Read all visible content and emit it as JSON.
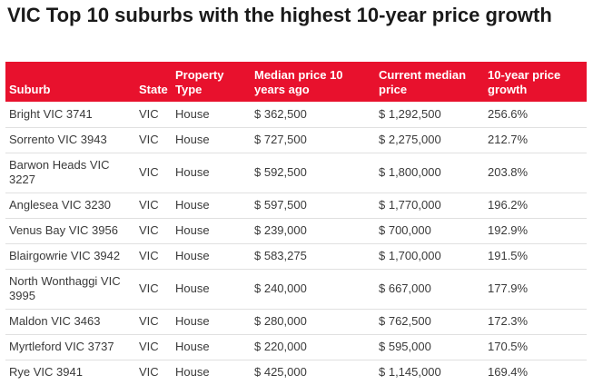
{
  "title": "VIC Top 10 suburbs with the highest 10-year price growth",
  "chart_data": {
    "type": "table",
    "columns": [
      "Suburb",
      "State",
      "Property Type",
      "Median price 10 years ago",
      "Current median price",
      "10-year price growth"
    ],
    "rows": [
      [
        "Bright VIC 3741",
        "VIC",
        "House",
        "$ 362,500",
        "$ 1,292,500",
        "256.6%"
      ],
      [
        "Sorrento VIC 3943",
        "VIC",
        "House",
        "$ 727,500",
        "$ 2,275,000",
        "212.7%"
      ],
      [
        "Barwon Heads VIC 3227",
        "VIC",
        "House",
        "$ 592,500",
        "$ 1,800,000",
        "203.8%"
      ],
      [
        "Anglesea VIC 3230",
        "VIC",
        "House",
        "$ 597,500",
        "$ 1,770,000",
        "196.2%"
      ],
      [
        "Venus Bay VIC 3956",
        "VIC",
        "House",
        "$ 239,000",
        "$ 700,000",
        "192.9%"
      ],
      [
        "Blairgowrie VIC 3942",
        "VIC",
        "House",
        "$ 583,275",
        "$ 1,700,000",
        "191.5%"
      ],
      [
        "North Wonthaggi VIC 3995",
        "VIC",
        "House",
        "$ 240,000",
        "$ 667,000",
        "177.9%"
      ],
      [
        "Maldon VIC 3463",
        "VIC",
        "House",
        "$ 280,000",
        "$ 762,500",
        "172.3%"
      ],
      [
        "Myrtleford VIC 3737",
        "VIC",
        "House",
        "$ 220,000",
        "$ 595,000",
        "170.5%"
      ],
      [
        "Rye VIC 3941",
        "VIC",
        "House",
        "$ 425,000",
        "$ 1,145,000",
        "169.4%"
      ]
    ]
  }
}
